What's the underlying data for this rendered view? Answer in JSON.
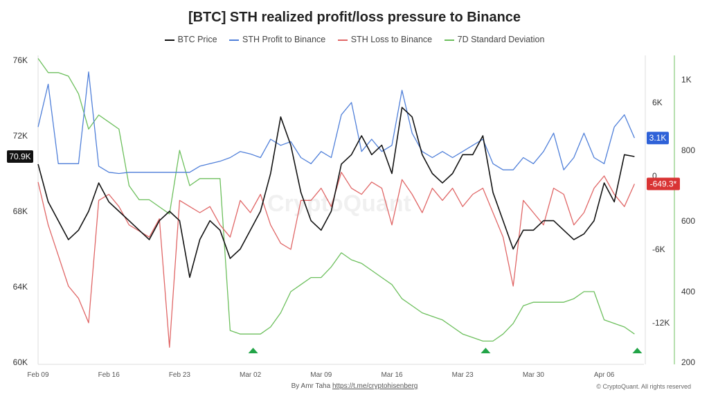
{
  "chart_data": {
    "type": "line",
    "title": "[BTC] STH realized profit/loss pressure to Binance",
    "legend_position": "top",
    "grid": false,
    "x": [
      "Feb 09",
      "Feb 10",
      "Feb 11",
      "Feb 12",
      "Feb 13",
      "Feb 14",
      "Feb 15",
      "Feb 16",
      "Feb 17",
      "Feb 18",
      "Feb 19",
      "Feb 20",
      "Feb 21",
      "Feb 22",
      "Feb 23",
      "Feb 24",
      "Feb 25",
      "Feb 26",
      "Feb 27",
      "Feb 28",
      "Mar 01",
      "Mar 02",
      "Mar 03",
      "Mar 04",
      "Mar 05",
      "Mar 06",
      "Mar 07",
      "Mar 08",
      "Mar 09",
      "Mar 10",
      "Mar 11",
      "Mar 12",
      "Mar 13",
      "Mar 14",
      "Mar 15",
      "Mar 16",
      "Mar 17",
      "Mar 18",
      "Mar 19",
      "Mar 20",
      "Mar 21",
      "Mar 22",
      "Mar 23",
      "Mar 24",
      "Mar 25",
      "Mar 26",
      "Mar 27",
      "Mar 28",
      "Mar 29",
      "Mar 30",
      "Mar 31",
      "Apr 01",
      "Apr 02",
      "Apr 03",
      "Apr 04",
      "Apr 05",
      "Apr 06",
      "Apr 07",
      "Apr 08",
      "Apr 09"
    ],
    "x_ticks": [
      "Feb 09",
      "Feb 16",
      "Feb 23",
      "Mar 02",
      "Mar 09",
      "Mar 16",
      "Mar 23",
      "Mar 30",
      "Apr 06"
    ],
    "axes": {
      "price": {
        "side": "left",
        "range": [
          60000,
          76000
        ],
        "ticks": [
          "60K",
          "64K",
          "68K",
          "72K",
          "76K"
        ],
        "tick_values": [
          60000,
          64000,
          68000,
          72000,
          76000
        ]
      },
      "flow": {
        "side": "right-inner",
        "range": [
          -16500,
          8000
        ],
        "ticks": [
          "6K",
          "0",
          "-6K",
          "-12K"
        ],
        "tick_values": [
          6000,
          0,
          -6000,
          -12000
        ]
      },
      "std": {
        "side": "right-outer",
        "range": [
          200,
          1060
        ],
        "ticks": [
          "1K",
          "800",
          "600",
          "400",
          "200"
        ],
        "tick_values": [
          1000,
          800,
          600,
          400,
          200
        ]
      }
    },
    "series": [
      {
        "name": "BTC Price",
        "axis": "price",
        "color": "#111111",
        "values": [
          70500,
          68500,
          67500,
          66500,
          67000,
          68000,
          69500,
          68500,
          68000,
          67500,
          67000,
          66500,
          67500,
          68000,
          67500,
          64500,
          66500,
          67500,
          67000,
          65500,
          66000,
          67000,
          68000,
          70000,
          73000,
          71500,
          69000,
          67500,
          67000,
          68000,
          70500,
          71000,
          72000,
          71000,
          71500,
          70000,
          73500,
          73000,
          71000,
          70000,
          69500,
          70000,
          71000,
          71000,
          72000,
          69000,
          67500,
          66000,
          67000,
          67000,
          67500,
          67500,
          67000,
          66500,
          66800,
          67500,
          69500,
          68500,
          71000,
          70900
        ]
      },
      {
        "name": "STH Profit to Binance",
        "axis": "flow",
        "color": "#4f7fd9",
        "values": [
          4000,
          7500,
          1000,
          1000,
          1000,
          8500,
          800,
          300,
          200,
          300,
          300,
          300,
          300,
          300,
          300,
          300,
          800,
          1000,
          1200,
          1500,
          2000,
          1800,
          1500,
          3000,
          2500,
          2800,
          1500,
          1000,
          2000,
          1500,
          5000,
          6000,
          2000,
          3000,
          2000,
          2500,
          7000,
          3500,
          2000,
          1500,
          2000,
          1500,
          2000,
          2500,
          3000,
          1000,
          500,
          500,
          1500,
          1000,
          2000,
          3500,
          500,
          1500,
          3500,
          1500,
          1000,
          4000,
          5000,
          3100
        ]
      },
      {
        "name": "STH Loss to Binance",
        "axis": "flow",
        "color": "#e06666",
        "values": [
          -500,
          -4000,
          -6500,
          -9000,
          -10000,
          -12000,
          -2000,
          -1500,
          -2500,
          -4000,
          -4500,
          -5000,
          -3500,
          -14000,
          -2000,
          -2500,
          -3000,
          -2500,
          -4000,
          -5000,
          -2000,
          -3000,
          -1500,
          -4000,
          -5500,
          -6000,
          -2000,
          -2000,
          -1000,
          -2500,
          300,
          -1000,
          -1500,
          -500,
          -1000,
          -4000,
          -300,
          -1500,
          -3000,
          -1000,
          -2000,
          -1000,
          -2500,
          -1500,
          -1000,
          -3000,
          -5000,
          -9000,
          -2000,
          -3000,
          -4000,
          -1000,
          -1500,
          -4000,
          -3000,
          -1000,
          0,
          -1500,
          -2500,
          -649.3
        ]
      },
      {
        "name": "7D Standard Deviation",
        "axis": "std",
        "color": "#6cbf5c",
        "values": [
          1060,
          1020,
          1020,
          1010,
          960,
          860,
          900,
          880,
          860,
          700,
          660,
          660,
          640,
          620,
          800,
          700,
          720,
          720,
          720,
          290,
          280,
          280,
          280,
          300,
          340,
          400,
          420,
          440,
          440,
          470,
          510,
          490,
          480,
          460,
          440,
          420,
          380,
          360,
          340,
          330,
          320,
          300,
          280,
          270,
          260,
          260,
          280,
          310,
          360,
          370,
          370,
          370,
          370,
          380,
          400,
          400,
          320,
          310,
          300,
          280
        ]
      }
    ],
    "markers": {
      "type": "triangle-up",
      "color": "#22a447",
      "x": [
        "Mar 02",
        "Mar 25",
        "Apr 09"
      ]
    },
    "last_value_badges": [
      {
        "text": "70.9K",
        "color": "#111111"
      },
      {
        "text": "3.1K",
        "color": "#2f62d8"
      },
      {
        "text": "-649.3*",
        "color": "#d93434"
      }
    ]
  },
  "legend": [
    "BTC Price",
    "STH Profit to Binance",
    "STH Loss to Binance",
    "7D Standard Deviation"
  ],
  "watermark": "CryptoQuant",
  "footer": {
    "author": "By Amr Taha",
    "link": "https://t.me/cryptohisenberg",
    "copyright": "© CryptoQuant. All rights reserved"
  }
}
